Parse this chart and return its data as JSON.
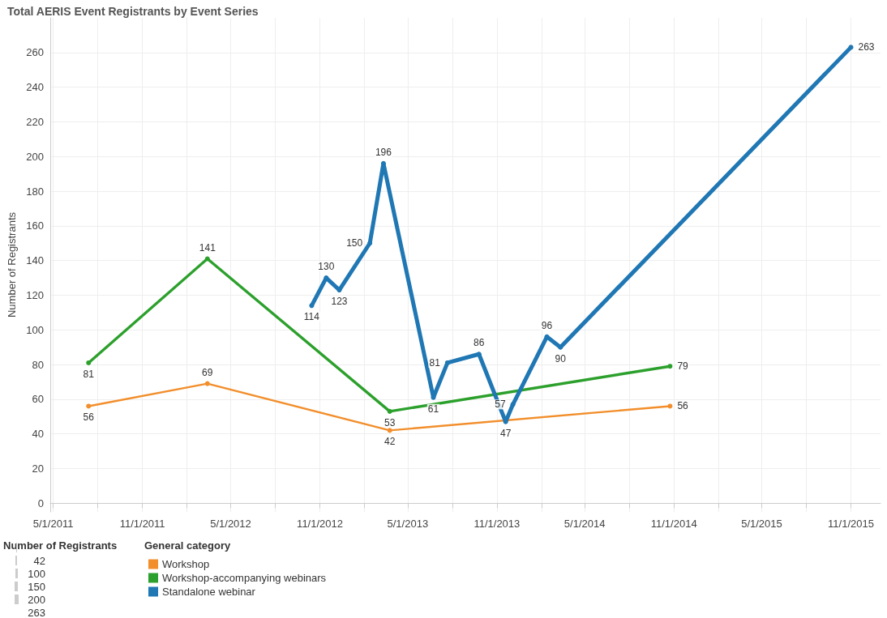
{
  "chart_data": {
    "type": "line",
    "title": "Total AERIS Event Registrants by Event Series",
    "ylabel": "Number of Registrants",
    "legend_title": "General category",
    "annotations": [
      "Number of Registrants",
      "42",
      "100",
      "150",
      "200",
      "263"
    ],
    "series": [
      {
        "name": "Workshop",
        "color": "#f28e2b",
        "x": [
          "2011-07-13",
          "2012-03-14",
          "2013-03-25",
          "2014-10-24"
        ],
        "values": [
          56,
          69,
          42,
          56
        ]
      },
      {
        "name": "Workshop-accompanying webinars",
        "color": "#2ca02c",
        "x": [
          "2011-07-13",
          "2012-03-14",
          "2013-03-25",
          "2014-10-24"
        ],
        "values": [
          81,
          141,
          53,
          79
        ]
      },
      {
        "name": "Standalone webinar",
        "color": "#1f77b4",
        "x": [
          "2012-10-15",
          "2012-11-14",
          "2012-12-11",
          "2013-02-12",
          "2013-03-12",
          "2013-06-23",
          "2013-07-22",
          "2013-09-25",
          "2013-11-19",
          "2013-12-04",
          "2014-02-12",
          "2014-03-12",
          "2015-11-01"
        ],
        "values": [
          114,
          130,
          123,
          150,
          196,
          61,
          81,
          86,
          47,
          57,
          96,
          90,
          263
        ]
      }
    ],
    "xlim": [
      "2011-04-25",
      "2016-01-01"
    ],
    "xticks": [
      {
        "value": "2011-05-01",
        "label": "5/1/2011"
      },
      {
        "value": "2011-08-01",
        "label": null
      },
      {
        "value": "2011-11-01",
        "label": "11/1/2011"
      },
      {
        "value": "2012-02-01",
        "label": null
      },
      {
        "value": "2012-05-01",
        "label": "5/1/2012"
      },
      {
        "value": "2012-08-01",
        "label": null
      },
      {
        "value": "2012-11-01",
        "label": "11/1/2012"
      },
      {
        "value": "2013-02-01",
        "label": null
      },
      {
        "value": "2013-05-01",
        "label": "5/1/2013"
      },
      {
        "value": "2013-08-01",
        "label": null
      },
      {
        "value": "2013-11-01",
        "label": "11/1/2013"
      },
      {
        "value": "2014-02-01",
        "label": null
      },
      {
        "value": "2014-05-01",
        "label": "5/1/2014"
      },
      {
        "value": "2014-08-01",
        "label": null
      },
      {
        "value": "2014-11-01",
        "label": "11/1/2014"
      },
      {
        "value": "2015-02-01",
        "label": null
      },
      {
        "value": "2015-05-01",
        "label": "5/1/2015"
      },
      {
        "value": "2015-08-01",
        "label": null
      },
      {
        "value": "2015-11-01",
        "label": "11/1/2015"
      }
    ],
    "ylim": [
      -5,
      280
    ],
    "yticks": [
      0,
      20,
      40,
      60,
      80,
      100,
      120,
      140,
      160,
      180,
      200,
      220,
      240,
      260
    ],
    "grid": true,
    "legend": "bottom left",
    "marker": "circle",
    "line_style": "solid",
    "data_labels": true
  }
}
